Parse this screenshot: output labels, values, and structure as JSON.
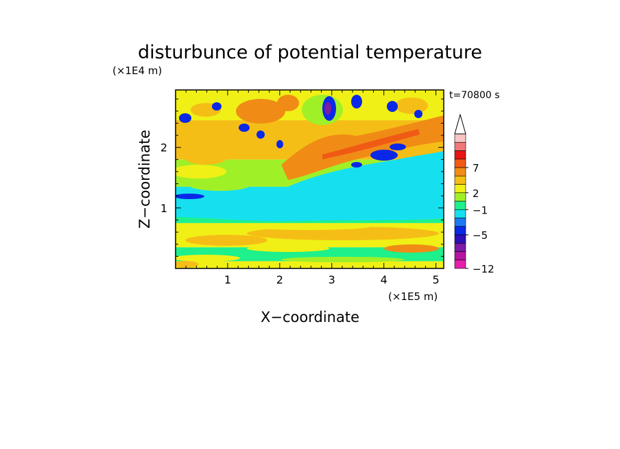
{
  "chart_data": {
    "type": "heatmap",
    "title": "disturbunce of potential temperature",
    "xlabel": "X−coordinate",
    "ylabel": "Z−coordinate",
    "x_unit": "(×1E5 m)",
    "y_unit": "(×1E4 m)",
    "time_label": "t=70800 s",
    "xlim": [
      0,
      5.15
    ],
    "ylim": [
      0,
      2.95
    ],
    "x_ticks": [
      {
        "v": 1,
        "label": "1"
      },
      {
        "v": 2,
        "label": "2"
      },
      {
        "v": 3,
        "label": "3"
      },
      {
        "v": 4,
        "label": "4"
      },
      {
        "v": 5,
        "label": "5"
      }
    ],
    "y_ticks": [
      {
        "v": 1,
        "label": "1"
      },
      {
        "v": 2,
        "label": "2"
      }
    ],
    "colorbar": {
      "colors": [
        "#e61ea9",
        "#b4169f",
        "#7d1aa6",
        "#2d10b8",
        "#0a28e6",
        "#1e78f0",
        "#16e0f0",
        "#1ef08c",
        "#a0f028",
        "#f0f016",
        "#f5be16",
        "#f08c16",
        "#f05a14",
        "#e61414",
        "#f07878",
        "#f7c3c3"
      ],
      "labels": [
        {
          "v": "-12",
          "text": "−12",
          "pos": 0
        },
        {
          "v": "-5",
          "text": "−5",
          "pos": 4
        },
        {
          "v": "-1",
          "text": "−1",
          "pos": 7
        },
        {
          "v": "2",
          "text": "2",
          "pos": 9
        },
        {
          "v": "7",
          "text": "7",
          "pos": 12
        }
      ],
      "extend": "max"
    },
    "field_bands": [
      {
        "z": [
          0,
          0.12
        ],
        "level": 9
      },
      {
        "z": [
          0.12,
          0.35
        ],
        "level": 7
      },
      {
        "z": [
          0.35,
          0.75
        ],
        "level": 9
      },
      {
        "z": [
          0.75,
          0.95
        ],
        "level": 7
      },
      {
        "z": [
          0.95,
          1.35
        ],
        "level": 6
      },
      {
        "z": [
          1.35,
          1.8
        ],
        "level": 8
      },
      {
        "z": [
          1.8,
          2.45
        ],
        "level": 10
      },
      {
        "z": [
          2.45,
          2.95
        ],
        "level": 9
      }
    ]
  }
}
